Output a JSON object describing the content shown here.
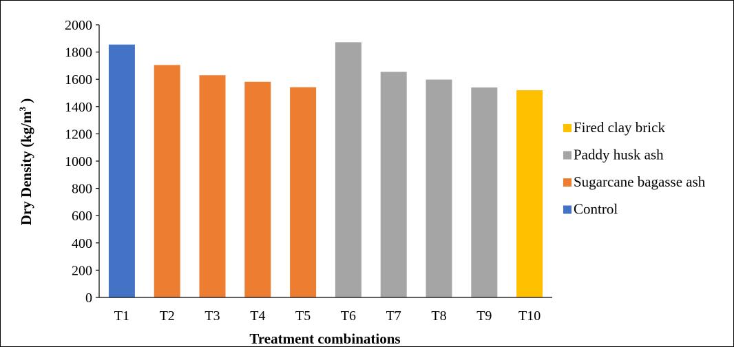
{
  "chart_data": {
    "type": "bar",
    "title": "",
    "xlabel": "Treatment combinations",
    "ylabel_main": "Dry Density (kg/m",
    "ylabel_sup": "3",
    "ylabel_end": " )",
    "ylim": [
      0,
      2000
    ],
    "yticks": [
      0,
      200,
      400,
      600,
      800,
      1000,
      1200,
      1400,
      1600,
      1800,
      2000
    ],
    "categories": [
      "T1",
      "T2",
      "T3",
      "T4",
      "T5",
      "T6",
      "T7",
      "T8",
      "T9",
      "T10"
    ],
    "values": [
      1855,
      1705,
      1630,
      1582,
      1542,
      1872,
      1655,
      1598,
      1540,
      1520
    ],
    "groups": [
      "Control",
      "Sugarcane bagasse ash",
      "Sugarcane bagasse ash",
      "Sugarcane bagasse ash",
      "Sugarcane bagasse ash",
      "Paddy husk ash",
      "Paddy husk ash",
      "Paddy husk ash",
      "Paddy husk ash",
      "Fired clay brick"
    ],
    "legend_position": "right",
    "legend": [
      {
        "name": "Fired clay brick",
        "color": "#FFC000"
      },
      {
        "name": "Paddy husk ash",
        "color": "#A5A5A5"
      },
      {
        "name": "Sugarcane bagasse ash",
        "color": "#ED7D31"
      },
      {
        "name": "Control",
        "color": "#4472C4"
      }
    ],
    "grid": false
  }
}
